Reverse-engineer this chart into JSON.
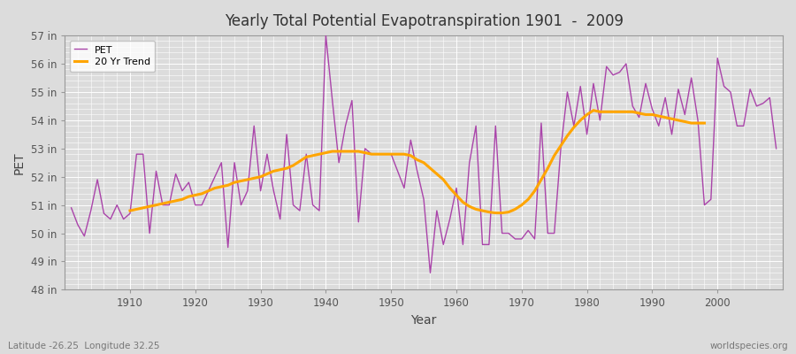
{
  "title": "Yearly Total Potential Evapotranspiration 1901  -  2009",
  "xlabel": "Year",
  "ylabel": "PET",
  "pet_color": "#AA44AA",
  "trend_color": "#FFA500",
  "fig_bg_color": "#DCDCDC",
  "plot_bg_color": "#DCDCDC",
  "grid_color": "#FFFFFF",
  "ylim_min": 48,
  "ylim_max": 57,
  "ytick_labels": [
    "48 in",
    "49 in",
    "50 in",
    "51 in",
    "52 in",
    "53 in",
    "54 in",
    "55 in",
    "56 in",
    "57 in"
  ],
  "ytick_values": [
    48,
    49,
    50,
    51,
    52,
    53,
    54,
    55,
    56,
    57
  ],
  "xtick_values": [
    1910,
    1920,
    1930,
    1940,
    1950,
    1960,
    1970,
    1980,
    1990,
    2000
  ],
  "footnote_left": "Latitude -26.25  Longitude 32.25",
  "footnote_right": "worldspecies.org",
  "years": [
    1901,
    1902,
    1903,
    1904,
    1905,
    1906,
    1907,
    1908,
    1909,
    1910,
    1911,
    1912,
    1913,
    1914,
    1915,
    1916,
    1917,
    1918,
    1919,
    1920,
    1921,
    1922,
    1923,
    1924,
    1925,
    1926,
    1927,
    1928,
    1929,
    1930,
    1931,
    1932,
    1933,
    1934,
    1935,
    1936,
    1937,
    1938,
    1939,
    1940,
    1941,
    1942,
    1943,
    1944,
    1945,
    1946,
    1947,
    1948,
    1949,
    1950,
    1951,
    1952,
    1953,
    1954,
    1955,
    1956,
    1957,
    1958,
    1959,
    1960,
    1961,
    1962,
    1963,
    1964,
    1965,
    1966,
    1967,
    1968,
    1969,
    1970,
    1971,
    1972,
    1973,
    1974,
    1975,
    1976,
    1977,
    1978,
    1979,
    1980,
    1981,
    1982,
    1983,
    1984,
    1985,
    1986,
    1987,
    1988,
    1989,
    1990,
    1991,
    1992,
    1993,
    1994,
    1995,
    1996,
    1997,
    1998,
    1999,
    2000,
    2001,
    2002,
    2003,
    2004,
    2005,
    2006,
    2007,
    2008,
    2009
  ],
  "pet_values": [
    50.9,
    50.3,
    49.9,
    50.8,
    51.9,
    50.7,
    50.5,
    51.0,
    50.5,
    50.7,
    52.8,
    52.8,
    50.0,
    52.2,
    51.0,
    51.0,
    52.1,
    51.5,
    51.8,
    51.0,
    51.0,
    51.5,
    52.0,
    52.5,
    49.5,
    52.5,
    51.0,
    51.5,
    53.8,
    51.5,
    52.8,
    51.5,
    50.5,
    53.5,
    51.0,
    50.8,
    52.8,
    51.0,
    50.8,
    57.0,
    54.7,
    52.5,
    53.8,
    54.7,
    50.4,
    53.0,
    52.8,
    52.8,
    52.8,
    52.8,
    52.2,
    51.6,
    53.3,
    52.2,
    51.2,
    48.6,
    50.8,
    49.6,
    50.5,
    51.6,
    49.6,
    52.5,
    53.8,
    49.6,
    49.6,
    53.8,
    50.0,
    50.0,
    49.8,
    49.8,
    50.1,
    49.8,
    53.9,
    50.0,
    50.0,
    53.0,
    55.0,
    53.8,
    55.2,
    53.5,
    55.3,
    54.0,
    55.9,
    55.6,
    55.7,
    56.0,
    54.5,
    54.1,
    55.3,
    54.4,
    53.8,
    54.8,
    53.5,
    55.1,
    54.2,
    55.5,
    54.0,
    51.0,
    51.2,
    56.2,
    55.2,
    55.0,
    53.8,
    53.8,
    55.1,
    54.5,
    54.6,
    54.8,
    53.0
  ],
  "trend_values": [
    null,
    null,
    null,
    null,
    null,
    null,
    null,
    null,
    null,
    50.8,
    50.85,
    50.9,
    50.95,
    51.0,
    51.05,
    51.1,
    51.15,
    51.2,
    51.3,
    51.35,
    51.4,
    51.5,
    51.6,
    51.65,
    51.7,
    51.8,
    51.85,
    51.9,
    51.95,
    52.0,
    52.1,
    52.2,
    52.25,
    52.3,
    52.4,
    52.55,
    52.7,
    52.75,
    52.8,
    52.85,
    52.9,
    52.9,
    52.9,
    52.9,
    52.9,
    52.85,
    52.8,
    52.8,
    52.8,
    52.8,
    52.8,
    52.8,
    52.75,
    52.6,
    52.5,
    52.3,
    52.1,
    51.9,
    51.6,
    51.35,
    51.1,
    50.95,
    50.85,
    50.8,
    50.75,
    50.72,
    50.72,
    50.75,
    50.85,
    51.0,
    51.2,
    51.5,
    51.9,
    52.3,
    52.75,
    53.1,
    53.45,
    53.75,
    54.0,
    54.2,
    54.35,
    54.3,
    54.3,
    54.3,
    54.3,
    54.3,
    54.3,
    54.25,
    54.2,
    54.2,
    54.15,
    54.1,
    54.05,
    54.0,
    53.95,
    53.9,
    53.9,
    53.9,
    null,
    null,
    null,
    null,
    null,
    null,
    null,
    null,
    null,
    null,
    null
  ]
}
